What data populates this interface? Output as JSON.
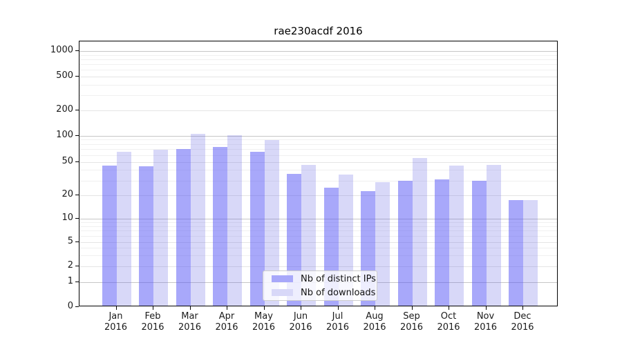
{
  "title": "rae230acdf 2016",
  "colors": {
    "ips_swatch": "#a8a8fa",
    "downloads_swatch": "#d8d8f8",
    "ips_fill": "rgba(81,81,245,0.5)",
    "downloads_fill": "rgba(99,99,227,0.25)",
    "grid_major": "#c6c6c6",
    "grid_minor": "#f0f0f0"
  },
  "legend": {
    "items": [
      {
        "label": "Nb of distinct IPs"
      },
      {
        "label": "Nb of downloads"
      }
    ]
  },
  "y_axis": {
    "ticks": [
      0,
      1,
      2,
      5,
      10,
      20,
      50,
      100,
      200,
      500,
      1000
    ]
  },
  "x_axis": {
    "labels": [
      [
        "Jan",
        "2016"
      ],
      [
        "Feb",
        "2016"
      ],
      [
        "Mar",
        "2016"
      ],
      [
        "Apr",
        "2016"
      ],
      [
        "May",
        "2016"
      ],
      [
        "Jun",
        "2016"
      ],
      [
        "Jul",
        "2016"
      ],
      [
        "Aug",
        "2016"
      ],
      [
        "Sep",
        "2016"
      ],
      [
        "Oct",
        "2016"
      ],
      [
        "Nov",
        "2016"
      ],
      [
        "Dec",
        "2016"
      ]
    ]
  },
  "chart_data": {
    "type": "bar",
    "title": "rae230acdf 2016",
    "categories": [
      "Jan 2016",
      "Feb 2016",
      "Mar 2016",
      "Apr 2016",
      "May 2016",
      "Jun 2016",
      "Jul 2016",
      "Aug 2016",
      "Sep 2016",
      "Oct 2016",
      "Nov 2016",
      "Dec 2016"
    ],
    "series": [
      {
        "name": "Nb of distinct IPs",
        "values": [
          44,
          43,
          68,
          72,
          64,
          35,
          24,
          22,
          29,
          30,
          29,
          17
        ]
      },
      {
        "name": "Nb of downloads",
        "values": [
          64,
          67,
          102,
          99,
          86,
          45,
          34,
          28,
          54,
          44,
          45,
          17
        ]
      }
    ],
    "xlabel": "",
    "ylabel": "",
    "yscale": "log-like with 0 baseline (symlog)",
    "y_ticks": [
      0,
      1,
      2,
      5,
      10,
      20,
      50,
      100,
      200,
      500,
      1000
    ],
    "ylim": [
      0,
      1300
    ],
    "grid": true,
    "legend_position": "lower center"
  }
}
